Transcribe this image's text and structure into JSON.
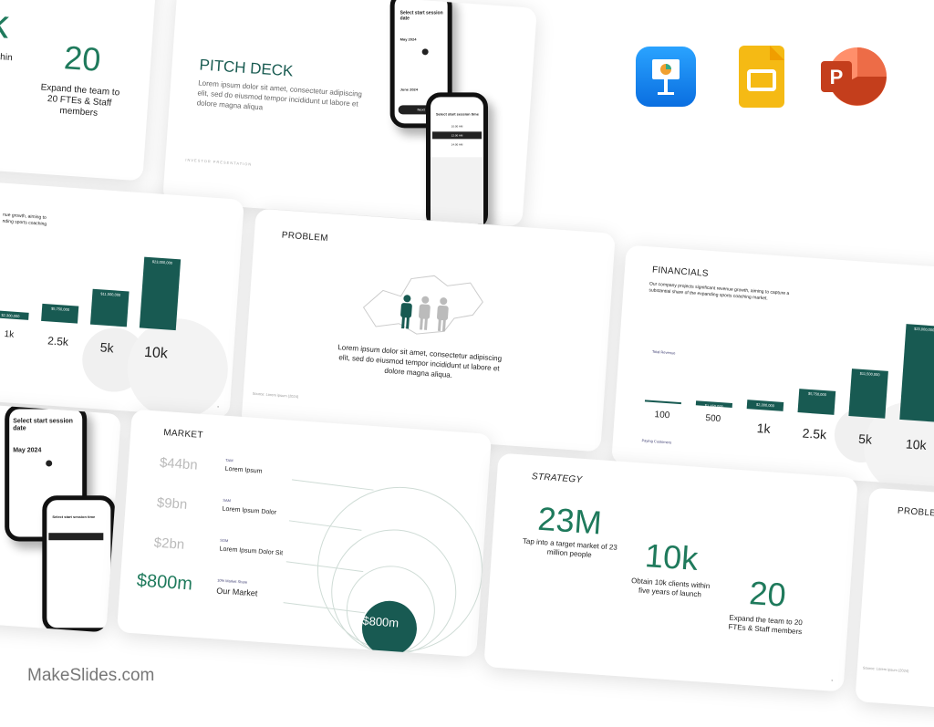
{
  "watermark": "MakeSlides.com",
  "apps": [
    {
      "name": "Keynote",
      "icon": "keynote-icon",
      "color": "#1a8cf0"
    },
    {
      "name": "Google Slides",
      "icon": "google-slides-icon",
      "color": "#f5ba14"
    },
    {
      "name": "PowerPoint",
      "icon": "powerpoint-icon",
      "color": "#d24726"
    }
  ],
  "accent": "#1f7a5c",
  "bar_color": "#185a52",
  "strategy_fragment": {
    "k_value": "k",
    "k_caption": "s within\nnch",
    "team_value": "20",
    "team_caption": "Expand the team to 20 FTEs & Staff members"
  },
  "pitch": {
    "title": "PITCH DECK",
    "body": "Lorem ipsum dolor sit amet, consectetur adipiscing elit, sed do eiusmod tempor incididunt ut labore et dolore magna aliqua",
    "footer": "INVESTOR PRESENTATION",
    "phone1_title": "Select start session date",
    "phone1_month1": "May 2024",
    "phone1_month2": "June 2024",
    "phone1_button": "Next",
    "phone2_title": "Select start session time",
    "phone2_slots": [
      "10:00 AM",
      "12:00 AM",
      "14:00 AM"
    ]
  },
  "chart_fragment": {
    "caption": "nue growth, aiming to\nnding sports coaching",
    "labels": [
      "1k",
      "2.5k",
      "5k",
      "10k"
    ],
    "bar_labels": [
      "$2,300,000",
      "$5,750,000",
      "$11,500,000",
      "$23,000,000"
    ],
    "values": [
      2300000,
      5750000,
      11500000,
      23000000
    ]
  },
  "problem": {
    "title": "PROBLEM",
    "body": "Lorem ipsum dolor sit amet, consectetur adipiscing elit, sed do eiusmod tempor incididunt ut labore et dolore magna aliqua.",
    "source": "Source: Lorem ipsum (2024)"
  },
  "financials": {
    "title": "FINANCIALS",
    "body": "Our company projects significant revenue growth, aiming to capture a substantial share of the expanding sports coaching market.",
    "y_label": "Total Revenue",
    "x_label": "Paying Customers",
    "chart_data": {
      "type": "bar",
      "categories": [
        "100",
        "500",
        "1k",
        "2.5k",
        "5k",
        "10k"
      ],
      "values": [
        230000,
        1150000,
        2300000,
        5750000,
        11500000,
        23000000
      ],
      "bar_labels": [
        "",
        "$1,150,000",
        "$2,300,000",
        "$5,750,000",
        "$11,500,000",
        "$23,000,000"
      ],
      "ylabel": "Total Revenue",
      "xlabel": "Paying Customers"
    }
  },
  "market": {
    "title": "MARKET",
    "rows": [
      {
        "value": "$44bn",
        "tag": "TAM",
        "label": "Lorem Ipsum"
      },
      {
        "value": "$9bn",
        "tag": "SAM",
        "label": "Lorem Ipsum Dolor"
      },
      {
        "value": "$2bn",
        "tag": "SOM",
        "label": "Lorem Ipsum Dolor Sit"
      },
      {
        "value": "$800m",
        "tag": "10% Market Share",
        "label": "Our Market"
      }
    ],
    "circle_label": "$800m"
  },
  "strategy": {
    "title": "STRATEGY",
    "items": [
      {
        "value": "23M",
        "caption": "Tap into a target market of 23 million people"
      },
      {
        "value": "10k",
        "caption": "Obtain 10k clients within five years of launch"
      },
      {
        "value": "20",
        "caption": "Expand the team to 20 FTEs & Staff members"
      }
    ]
  },
  "problem_fragment": {
    "title": "PROBLEM",
    "source": "Source: Lorem ipsum (2024)"
  },
  "phone_fragment": {
    "title": "Select start session date",
    "title2": "Select start session time",
    "month": "May 2024"
  }
}
